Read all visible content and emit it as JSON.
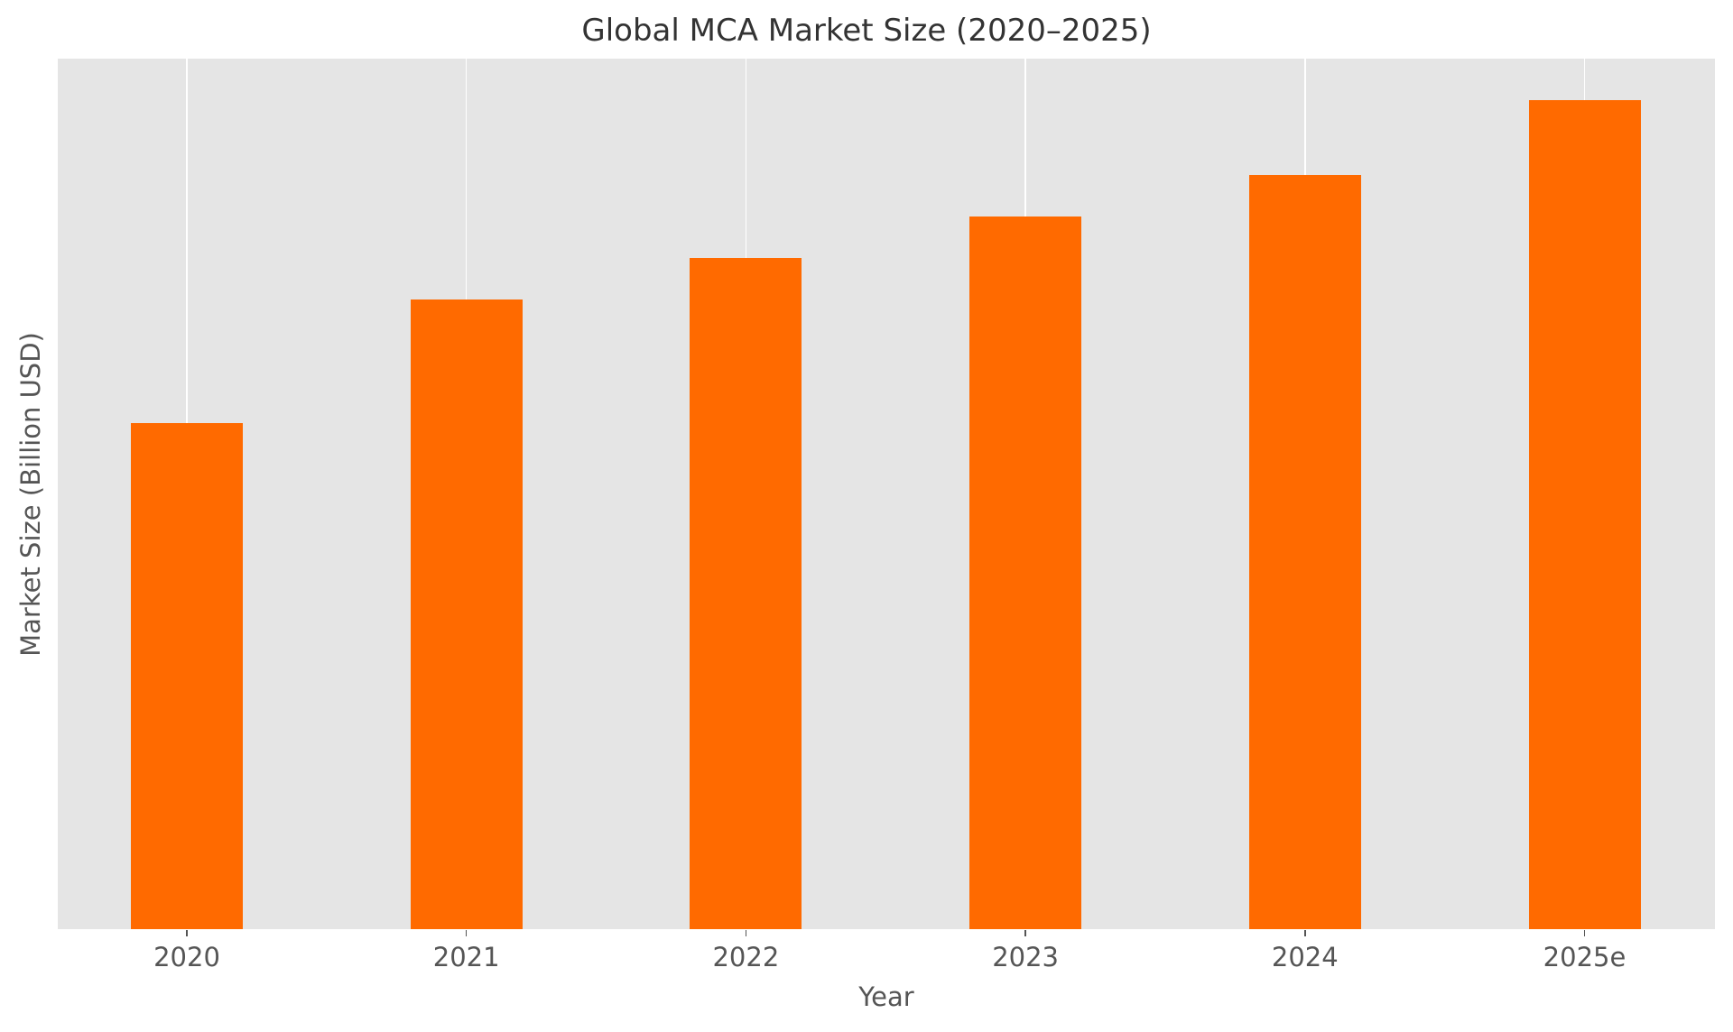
{
  "chart_data": {
    "type": "bar",
    "title": "Global MCA Market Size (2020–2025)",
    "xlabel": "Year",
    "ylabel": "Market Size (Billion USD)",
    "categories": [
      "2020",
      "2021",
      "2022",
      "2023",
      "2024",
      "2025e"
    ],
    "values": [
      6.1,
      7.6,
      8.1,
      8.6,
      9.1,
      10.0
    ],
    "values_note": "Estimated from relative bar heights; no y-axis tick labels are shown",
    "ylim": [
      0,
      10.5
    ],
    "y_ticks_visible": false,
    "grid": {
      "x": true,
      "y": false
    },
    "legend": null,
    "bar_color": "#ff6a00",
    "plot_background": "#e5e5e5"
  }
}
